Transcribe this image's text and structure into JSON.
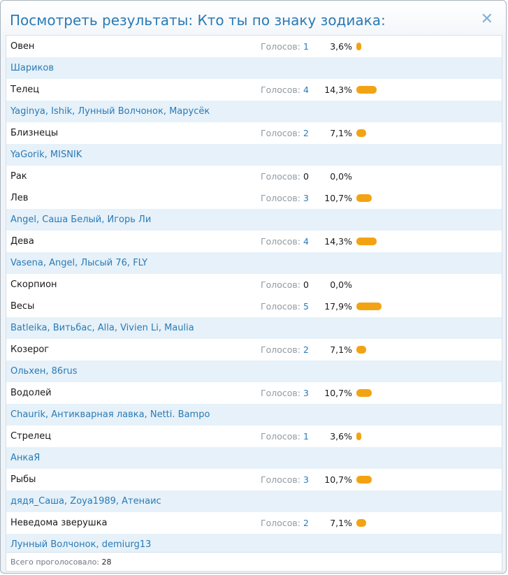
{
  "dialog": {
    "title": "Посмотреть результаты: Кто ты по знаку зодиака:",
    "close_icon": "close-icon"
  },
  "votes_label": "Голосов:",
  "bar_color": "#f2a314",
  "link_color": "#2a7ab5",
  "results": [
    {
      "option": "Овен",
      "votes": 1,
      "percent": "3,6%",
      "share": 3.6,
      "voters": "Шариков"
    },
    {
      "option": "Телец",
      "votes": 4,
      "percent": "14,3%",
      "share": 14.3,
      "voters": "Yaginya, Ishik, Лунный Волчонок, Марусёк"
    },
    {
      "option": "Близнецы",
      "votes": 2,
      "percent": "7,1%",
      "share": 7.1,
      "voters": "YaGorik, MISNIK"
    },
    {
      "option": "Рак",
      "votes": 0,
      "percent": "0,0%",
      "share": 0,
      "voters": ""
    },
    {
      "option": "Лев",
      "votes": 3,
      "percent": "10,7%",
      "share": 10.7,
      "voters": "Angel, Саша Белый, Игорь Ли"
    },
    {
      "option": "Дева",
      "votes": 4,
      "percent": "14,3%",
      "share": 14.3,
      "voters": "Vasena, Angel, Лысый 76, FLY"
    },
    {
      "option": "Скорпион",
      "votes": 0,
      "percent": "0,0%",
      "share": 0,
      "voters": ""
    },
    {
      "option": "Весы",
      "votes": 5,
      "percent": "17,9%",
      "share": 17.9,
      "voters": "Batleika, Витьбас, Alla, Vivien Li, Maulia"
    },
    {
      "option": "Козерог",
      "votes": 2,
      "percent": "7,1%",
      "share": 7.1,
      "voters": "Ольхен, 86rus"
    },
    {
      "option": "Водолей",
      "votes": 3,
      "percent": "10,7%",
      "share": 10.7,
      "voters": "Chaurik, Антикварная лавка, Netti. Bampo"
    },
    {
      "option": "Стрелец",
      "votes": 1,
      "percent": "3,6%",
      "share": 3.6,
      "voters": "АнкаЯ"
    },
    {
      "option": "Рыбы",
      "votes": 3,
      "percent": "10,7%",
      "share": 10.7,
      "voters": "дядя_Саша, Zoya1989, Атенаис"
    },
    {
      "option": "Неведома зверушка",
      "votes": 2,
      "percent": "7,1%",
      "share": 7.1,
      "voters": "Лунный Волчонок, demiurg13"
    }
  ],
  "footer": {
    "label": "Всего проголосовало:",
    "total": "28"
  }
}
